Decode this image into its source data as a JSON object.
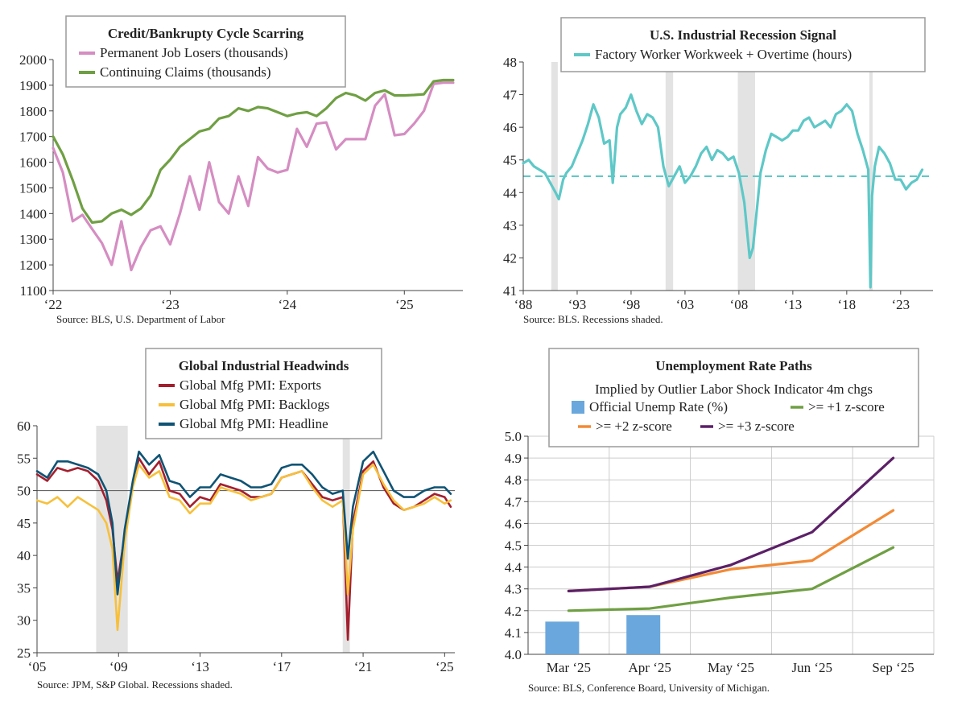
{
  "chart_data": [
    {
      "id": "credit",
      "type": "line",
      "title": "Credit/Bankrupty Cycle Scarring",
      "legend_placement": "top",
      "x_tick_labels": [
        "‘22",
        "‘23",
        "‘24",
        "‘25"
      ],
      "x_tick_positions": [
        2022,
        2023,
        2024,
        2025
      ],
      "xlim": [
        2022,
        2025.5
      ],
      "y_tick_labels": [
        "1100",
        "1200",
        "1300",
        "1400",
        "1500",
        "1600",
        "1700",
        "1800",
        "1900",
        "2000"
      ],
      "ylim": [
        1100,
        2000
      ],
      "source": "Source: BLS, U.S. Department of Labor",
      "series": [
        {
          "name": "Permanent Job Losers (thousands)",
          "color": "#d58dc2",
          "x": [
            2022.0,
            2022.083,
            2022.167,
            2022.25,
            2022.333,
            2022.417,
            2022.5,
            2022.583,
            2022.667,
            2022.75,
            2022.833,
            2022.917,
            2023.0,
            2023.083,
            2023.167,
            2023.25,
            2023.333,
            2023.417,
            2023.5,
            2023.583,
            2023.667,
            2023.75,
            2023.833,
            2023.917,
            2024.0,
            2024.083,
            2024.167,
            2024.25,
            2024.333,
            2024.417,
            2024.5,
            2024.583,
            2024.667,
            2024.75,
            2024.833,
            2024.917,
            2025.0,
            2025.083,
            2025.167,
            2025.25,
            2025.333,
            2025.417
          ],
          "values": [
            1655,
            1560,
            1370,
            1395,
            1340,
            1285,
            1200,
            1370,
            1180,
            1270,
            1335,
            1350,
            1280,
            1400,
            1545,
            1415,
            1600,
            1445,
            1400,
            1545,
            1430,
            1620,
            1575,
            1560,
            1570,
            1730,
            1660,
            1750,
            1755,
            1650,
            1690,
            1690,
            1690,
            1820,
            1865,
            1705,
            1710,
            1750,
            1800,
            1905,
            1910,
            1910
          ]
        },
        {
          "name": "Continuing Claims (thousands)",
          "color": "#6f9f43",
          "x": [
            2022.0,
            2022.083,
            2022.167,
            2022.25,
            2022.333,
            2022.417,
            2022.5,
            2022.583,
            2022.667,
            2022.75,
            2022.833,
            2022.917,
            2023.0,
            2023.083,
            2023.167,
            2023.25,
            2023.333,
            2023.417,
            2023.5,
            2023.583,
            2023.667,
            2023.75,
            2023.833,
            2023.917,
            2024.0,
            2024.083,
            2024.167,
            2024.25,
            2024.333,
            2024.417,
            2024.5,
            2024.583,
            2024.667,
            2024.75,
            2024.833,
            2024.917,
            2025.0,
            2025.083,
            2025.167,
            2025.25,
            2025.333,
            2025.417
          ],
          "values": [
            1700,
            1630,
            1530,
            1420,
            1365,
            1370,
            1400,
            1415,
            1395,
            1420,
            1470,
            1570,
            1610,
            1660,
            1690,
            1720,
            1730,
            1770,
            1780,
            1810,
            1800,
            1815,
            1810,
            1795,
            1780,
            1790,
            1795,
            1780,
            1810,
            1850,
            1870,
            1860,
            1840,
            1870,
            1880,
            1860,
            1860,
            1862,
            1865,
            1915,
            1920,
            1920
          ]
        }
      ]
    },
    {
      "id": "workweek",
      "type": "line",
      "title": "U.S. Industrial Recession Signal",
      "legend_placement": "top",
      "x_tick_labels": [
        "‘88",
        "‘93",
        "‘98",
        "‘03",
        "‘08",
        "‘13",
        "‘18",
        "‘23"
      ],
      "x_tick_positions": [
        1988,
        1993,
        1998,
        2003,
        2008,
        2013,
        2018,
        2023
      ],
      "xlim": [
        1988,
        2026
      ],
      "y_tick_labels": [
        "41",
        "42",
        "43",
        "44",
        "45",
        "46",
        "47",
        "48"
      ],
      "ylim": [
        41,
        48
      ],
      "reference_line": 44.5,
      "recessions": [
        [
          1990.6,
          1991.2
        ],
        [
          2001.2,
          2001.9
        ],
        [
          2007.9,
          2009.5
        ],
        [
          2020.1,
          2020.4
        ]
      ],
      "source": "Source: BLS. Recessions shaded.",
      "series": [
        {
          "name": "Factory Worker Workweek + Overtime (hours)",
          "color": "#5ec8c7",
          "x": [
            1988.0,
            1988.5,
            1989.0,
            1989.5,
            1990.0,
            1990.5,
            1991.0,
            1991.3,
            1991.7,
            1992.0,
            1992.5,
            1993.0,
            1993.5,
            1994.0,
            1994.5,
            1995.0,
            1995.5,
            1996.0,
            1996.3,
            1996.7,
            1997.0,
            1997.5,
            1998.0,
            1998.5,
            1999.0,
            1999.5,
            2000.0,
            2000.5,
            2001.0,
            2001.5,
            2002.0,
            2002.5,
            2003.0,
            2003.5,
            2004.0,
            2004.5,
            2005.0,
            2005.5,
            2006.0,
            2006.5,
            2007.0,
            2007.5,
            2008.0,
            2008.5,
            2009.0,
            2009.3,
            2009.7,
            2010.0,
            2010.5,
            2011.0,
            2011.5,
            2012.0,
            2012.5,
            2013.0,
            2013.5,
            2014.0,
            2014.5,
            2015.0,
            2015.5,
            2016.0,
            2016.5,
            2017.0,
            2017.5,
            2018.0,
            2018.5,
            2019.0,
            2019.5,
            2020.0,
            2020.2,
            2020.35,
            2020.6,
            2021.0,
            2021.5,
            2022.0,
            2022.5,
            2023.0,
            2023.5,
            2024.0,
            2024.5,
            2025.0
          ],
          "values": [
            44.9,
            45.0,
            44.8,
            44.7,
            44.6,
            44.3,
            44.0,
            43.8,
            44.4,
            44.6,
            44.8,
            45.2,
            45.6,
            46.1,
            46.7,
            46.3,
            45.5,
            45.6,
            44.3,
            46.0,
            46.4,
            46.6,
            47.0,
            46.5,
            46.1,
            46.4,
            46.3,
            46.0,
            44.8,
            44.2,
            44.5,
            44.8,
            44.3,
            44.5,
            44.8,
            45.2,
            45.4,
            45.0,
            45.3,
            45.2,
            45.0,
            45.1,
            44.6,
            43.7,
            42.0,
            42.3,
            43.6,
            44.6,
            45.3,
            45.8,
            45.7,
            45.6,
            45.7,
            45.9,
            45.9,
            46.2,
            46.3,
            46.0,
            46.1,
            46.2,
            46.0,
            46.4,
            46.5,
            46.7,
            46.5,
            45.8,
            45.3,
            44.7,
            41.1,
            43.9,
            44.8,
            45.4,
            45.2,
            44.9,
            44.4,
            44.4,
            44.1,
            44.3,
            44.4,
            44.7
          ]
        }
      ]
    },
    {
      "id": "pmi",
      "type": "line",
      "title": "Global Industrial Headwinds",
      "legend_placement": "top",
      "x_tick_labels": [
        "‘05",
        "‘09",
        "‘13",
        "‘17",
        "‘21",
        "‘25"
      ],
      "x_tick_positions": [
        2005,
        2009,
        2013,
        2017,
        2021,
        2025
      ],
      "xlim": [
        2005,
        2025.5
      ],
      "y_tick_labels": [
        "25",
        "30",
        "35",
        "40",
        "45",
        "50",
        "55",
        "60"
      ],
      "ylim": [
        25,
        60
      ],
      "reference_line": 50,
      "recessions": [
        [
          2007.9,
          2009.45
        ],
        [
          2020.0,
          2020.35
        ]
      ],
      "source": "Source: JPM, S&P Global. Recessions shaded.",
      "series": [
        {
          "name": "Global Mfg PMI: Exports",
          "color": "#a31f2e",
          "x": [
            2005.0,
            2005.5,
            2006.0,
            2006.5,
            2007.0,
            2007.5,
            2008.0,
            2008.4,
            2008.7,
            2008.95,
            2009.3,
            2009.7,
            2010.0,
            2010.5,
            2011.0,
            2011.5,
            2012.0,
            2012.5,
            2013.0,
            2013.5,
            2014.0,
            2014.5,
            2015.0,
            2015.5,
            2016.0,
            2016.5,
            2017.0,
            2017.5,
            2018.0,
            2018.5,
            2019.0,
            2019.5,
            2020.0,
            2020.25,
            2020.5,
            2021.0,
            2021.5,
            2022.0,
            2022.5,
            2023.0,
            2023.5,
            2024.0,
            2024.5,
            2025.0,
            2025.3
          ],
          "values": [
            52.5,
            51.5,
            53.5,
            53.0,
            53.5,
            53.0,
            51.5,
            48.5,
            44.0,
            36.0,
            43.0,
            51.0,
            55.0,
            52.5,
            54.5,
            50.0,
            49.5,
            47.5,
            49.0,
            48.5,
            51.0,
            50.5,
            50.0,
            49.0,
            49.0,
            49.5,
            52.0,
            52.5,
            53.0,
            51.0,
            49.0,
            48.5,
            49.0,
            27.0,
            45.0,
            53.0,
            54.5,
            50.5,
            48.0,
            47.0,
            47.5,
            48.5,
            49.5,
            49.0,
            47.5
          ]
        },
        {
          "name": "Global Mfg PMI: Backlogs",
          "color": "#f7c03b",
          "x": [
            2005.0,
            2005.5,
            2006.0,
            2006.5,
            2007.0,
            2007.5,
            2008.0,
            2008.4,
            2008.7,
            2008.95,
            2009.3,
            2009.7,
            2010.0,
            2010.5,
            2011.0,
            2011.5,
            2012.0,
            2012.5,
            2013.0,
            2013.5,
            2014.0,
            2014.5,
            2015.0,
            2015.5,
            2016.0,
            2016.5,
            2017.0,
            2017.5,
            2018.0,
            2018.5,
            2019.0,
            2019.5,
            2020.0,
            2020.25,
            2020.5,
            2021.0,
            2021.5,
            2022.0,
            2022.5,
            2023.0,
            2023.5,
            2024.0,
            2024.5,
            2025.0,
            2025.3
          ],
          "values": [
            48.5,
            48.0,
            49.0,
            47.5,
            49.0,
            48.0,
            47.0,
            45.0,
            41.0,
            28.5,
            42.0,
            50.5,
            54.0,
            52.0,
            53.0,
            49.0,
            48.5,
            46.5,
            48.0,
            48.0,
            50.5,
            50.0,
            49.5,
            48.5,
            49.0,
            49.5,
            52.0,
            52.5,
            53.0,
            50.5,
            48.5,
            47.5,
            48.5,
            34.0,
            44.0,
            52.5,
            54.0,
            51.0,
            48.5,
            47.0,
            47.5,
            48.0,
            49.0,
            48.0,
            48.5
          ]
        },
        {
          "name": "Global Mfg PMI: Headline",
          "color": "#0f5374",
          "x": [
            2005.0,
            2005.5,
            2006.0,
            2006.5,
            2007.0,
            2007.5,
            2008.0,
            2008.4,
            2008.7,
            2008.95,
            2009.3,
            2009.7,
            2010.0,
            2010.5,
            2011.0,
            2011.5,
            2012.0,
            2012.5,
            2013.0,
            2013.5,
            2014.0,
            2014.5,
            2015.0,
            2015.5,
            2016.0,
            2016.5,
            2017.0,
            2017.5,
            2018.0,
            2018.5,
            2019.0,
            2019.5,
            2020.0,
            2020.25,
            2020.5,
            2021.0,
            2021.5,
            2022.0,
            2022.5,
            2023.0,
            2023.5,
            2024.0,
            2024.5,
            2025.0,
            2025.3
          ],
          "values": [
            53.0,
            52.0,
            54.5,
            54.5,
            54.0,
            53.5,
            52.5,
            50.0,
            45.0,
            34.0,
            44.0,
            51.5,
            56.0,
            54.0,
            55.5,
            51.5,
            51.0,
            49.0,
            50.5,
            50.5,
            52.5,
            52.0,
            51.5,
            50.5,
            50.5,
            51.0,
            53.5,
            54.0,
            54.0,
            52.5,
            50.5,
            49.5,
            50.0,
            39.5,
            47.5,
            54.5,
            56.0,
            53.0,
            50.0,
            49.0,
            49.0,
            50.0,
            50.5,
            50.5,
            49.5
          ]
        }
      ]
    },
    {
      "id": "unemp",
      "type": "line",
      "title": "Unemployment Rate Paths",
      "subtitle": "Implied by Outlier Labor Shock Indicator 4m chgs",
      "legend_placement": "top",
      "categories": [
        "Mar ‘25",
        "Apr ‘25",
        "May ‘25",
        "Jun ‘25",
        "Sep ‘25"
      ],
      "y_tick_labels": [
        "4.0",
        "4.1",
        "4.2",
        "4.3",
        "4.4",
        "4.5",
        "4.6",
        "4.7",
        "4.8",
        "4.9",
        "5.0"
      ],
      "ylim": [
        4.0,
        5.0
      ],
      "grid": true,
      "source": "Source: BLS, Conference Board, University of Michigan.",
      "bars": {
        "name": "Official Unemp Rate (%)",
        "color": "#6aa7dc",
        "values": [
          4.15,
          4.18,
          null,
          null,
          null
        ]
      },
      "series": [
        {
          "name": ">= +1 z-score",
          "color": "#6f9f43",
          "values": [
            4.2,
            4.21,
            4.26,
            4.3,
            4.49
          ]
        },
        {
          "name": ">= +2 z-score",
          "color": "#f28a36",
          "values": [
            4.29,
            4.31,
            4.39,
            4.43,
            4.66
          ]
        },
        {
          "name": ">= +3 z-score",
          "color": "#5b2067",
          "values": [
            4.29,
            4.31,
            4.41,
            4.56,
            4.9
          ]
        }
      ]
    }
  ]
}
